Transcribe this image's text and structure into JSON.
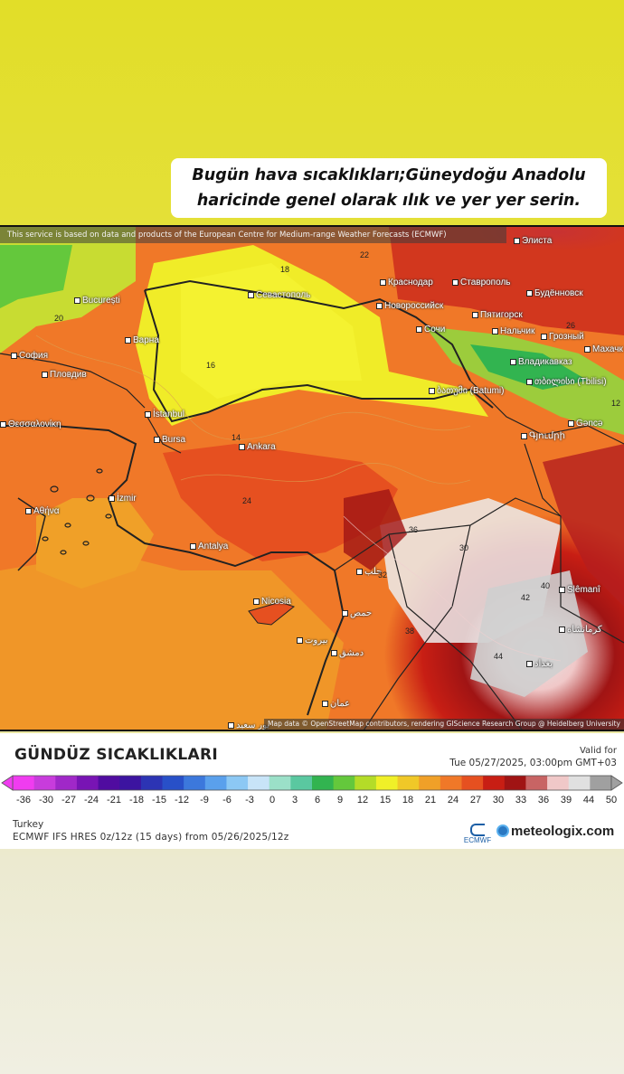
{
  "caption": {
    "line1": "Bugün hava sıcaklıkları;Güneydoğu Anadolu",
    "line2": "haricinde genel olarak ılık ve yer yer serin."
  },
  "map": {
    "attribution_top": "This service is based on data and products of the European Centre for Medium-range Weather Forecasts (ECMWF)",
    "attribution_bottom": "Map data © OpenStreetMap contributors, rendering GIScience Research Group @ Heidelberg University",
    "cities": [
      {
        "id": "bucuresti",
        "name": "București"
      },
      {
        "id": "varna",
        "name": "Варна"
      },
      {
        "id": "sofia",
        "name": "София"
      },
      {
        "id": "plovdiv",
        "name": "Пловдив"
      },
      {
        "id": "thessaloniki",
        "name": "Θεσσαλονίκη"
      },
      {
        "id": "istanbul",
        "name": "İstanbul"
      },
      {
        "id": "bursa",
        "name": "Bursa"
      },
      {
        "id": "ankara",
        "name": "Ankara"
      },
      {
        "id": "izmir",
        "name": "İzmir"
      },
      {
        "id": "athina",
        "name": "Αθήνα"
      },
      {
        "id": "antalya",
        "name": "Antalya"
      },
      {
        "id": "nicosia",
        "name": "Nicosia"
      },
      {
        "id": "sevastopol",
        "name": "Севастополь"
      },
      {
        "id": "krasnodar",
        "name": "Краснодар"
      },
      {
        "id": "stavropol",
        "name": "Ставрополь"
      },
      {
        "id": "novorossiysk",
        "name": "Новороссийск"
      },
      {
        "id": "budennovsk",
        "name": "Будённовск"
      },
      {
        "id": "sochi",
        "name": "Сочи"
      },
      {
        "id": "pyatigorsk",
        "name": "Пятигорск"
      },
      {
        "id": "nalchik",
        "name": "Нальчик"
      },
      {
        "id": "grozny",
        "name": "Грозный"
      },
      {
        "id": "vladikavkaz",
        "name": "Владикавказ"
      },
      {
        "id": "batumi",
        "name": "ბათუმი (Batumi)"
      },
      {
        "id": "tbilisi",
        "name": "თბილისი (Tbilisi)"
      },
      {
        "id": "ganca",
        "name": "Gəncə"
      },
      {
        "id": "gyumri",
        "name": "Գյումրի"
      },
      {
        "id": "elista",
        "name": "Элиста"
      },
      {
        "id": "makhachkala",
        "name": "Махачк"
      },
      {
        "id": "slemani",
        "name": "Slêmanî"
      },
      {
        "id": "beirut",
        "name": "بيروت"
      },
      {
        "id": "dimashq",
        "name": "دمشق"
      },
      {
        "id": "amman",
        "name": "عمان"
      },
      {
        "id": "halab",
        "name": "حلب"
      },
      {
        "id": "homs",
        "name": "حمص"
      },
      {
        "id": "baghdad",
        "name": "بغداد"
      },
      {
        "id": "kermanshah",
        "name": "کرمانشاه"
      },
      {
        "id": "port_said",
        "name": "بور سعيد"
      }
    ],
    "isotherm_labels": [
      {
        "id": "a",
        "value": "16"
      },
      {
        "id": "b",
        "value": "18"
      },
      {
        "id": "c",
        "value": "22"
      },
      {
        "id": "d",
        "value": "20"
      },
      {
        "id": "e",
        "value": "24"
      },
      {
        "id": "f",
        "value": "14"
      },
      {
        "id": "g",
        "value": "12"
      },
      {
        "id": "h",
        "value": "36"
      },
      {
        "id": "i",
        "value": "38"
      },
      {
        "id": "j",
        "value": "44"
      },
      {
        "id": "k",
        "value": "42"
      },
      {
        "id": "l",
        "value": "30"
      },
      {
        "id": "m",
        "value": "26"
      },
      {
        "id": "n",
        "value": "40"
      },
      {
        "id": "o",
        "value": "32"
      }
    ]
  },
  "legend": {
    "title": "GÜNDÜZ SICAKLIKLARI",
    "valid_label": "Valid for",
    "valid_time": "Tue 05/27/2025, 03:00pm GMT+03",
    "ticks": [
      "-36",
      "-30",
      "-27",
      "-24",
      "-21",
      "-18",
      "-15",
      "-12",
      "-9",
      "-6",
      "-3",
      "0",
      "3",
      "6",
      "9",
      "12",
      "15",
      "18",
      "21",
      "24",
      "27",
      "30",
      "33",
      "36",
      "39",
      "44",
      "50"
    ],
    "colors": [
      "#f03cf0",
      "#c83cdc",
      "#a028c8",
      "#7814b4",
      "#500ca0",
      "#3c14a0",
      "#2c34b4",
      "#2850c8",
      "#3c78dc",
      "#5aa0ec",
      "#8cc8f4",
      "#c8e4f8",
      "#9be0c8",
      "#5ac8a0",
      "#32b450",
      "#64c83c",
      "#b4dc28",
      "#f0f028",
      "#f0c828",
      "#f0a028",
      "#f07828",
      "#e65020",
      "#c81e14",
      "#a01414",
      "#c86464",
      "#f0c8c8",
      "#e0e0e0",
      "#a0a0a0"
    ],
    "region": "Turkey",
    "model": "ECMWF IFS HRES 0z/12z (15 days) from 05/26/2025/12z",
    "ecmwf_label": "ECMWF",
    "brand": "meteologix.com"
  }
}
